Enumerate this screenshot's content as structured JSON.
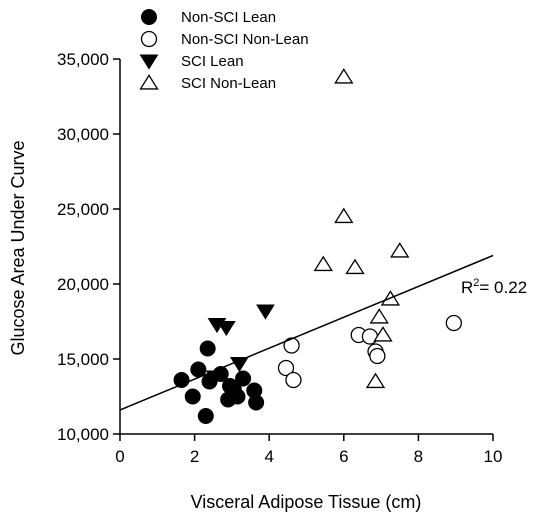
{
  "chart_data": {
    "type": "scatter",
    "xlabel": "Visceral Adipose Tissue (cm)",
    "ylabel": "Glucose Area Under Curve",
    "xlim": [
      0,
      10
    ],
    "ylim": [
      10000,
      35000
    ],
    "xticks": [
      0,
      2,
      4,
      6,
      8,
      10
    ],
    "xtick_labels": [
      "0",
      "2",
      "4",
      "6",
      "8",
      "10"
    ],
    "yticks": [
      10000,
      15000,
      20000,
      25000,
      30000,
      35000
    ],
    "ytick_labels": [
      "10,000",
      "15,000",
      "20,000",
      "25,000",
      "30,000",
      "35,000"
    ],
    "grid": false,
    "legend_position": "top-left",
    "series": [
      {
        "name": "Non-SCI Lean",
        "marker": "filled-circle",
        "color": "#000000",
        "points": [
          [
            1.65,
            13600
          ],
          [
            1.95,
            12500
          ],
          [
            2.1,
            14300
          ],
          [
            2.3,
            11200
          ],
          [
            2.35,
            15700
          ],
          [
            2.4,
            13500
          ],
          [
            2.7,
            14000
          ],
          [
            2.9,
            12300
          ],
          [
            2.95,
            13200
          ],
          [
            3.05,
            13000
          ],
          [
            3.15,
            12500
          ],
          [
            3.3,
            13700
          ],
          [
            3.6,
            12900
          ],
          [
            3.65,
            12100
          ]
        ]
      },
      {
        "name": "Non-SCI Non-Lean",
        "marker": "open-circle",
        "color": "#000000",
        "points": [
          [
            4.45,
            14400
          ],
          [
            4.6,
            15900
          ],
          [
            4.65,
            13600
          ],
          [
            6.4,
            16600
          ],
          [
            6.7,
            16500
          ],
          [
            6.85,
            15500
          ],
          [
            6.9,
            15200
          ],
          [
            8.95,
            17400
          ]
        ]
      },
      {
        "name": "SCI Lean",
        "marker": "filled-triangle-down",
        "color": "#000000",
        "points": [
          [
            2.6,
            17300
          ],
          [
            2.85,
            17100
          ],
          [
            3.2,
            14700
          ],
          [
            3.9,
            18200
          ],
          [
            2.55,
            13800
          ]
        ]
      },
      {
        "name": "SCI Non-Lean",
        "marker": "open-triangle-up",
        "color": "#000000",
        "points": [
          [
            6.0,
            33800
          ],
          [
            6.0,
            24500
          ],
          [
            5.45,
            21300
          ],
          [
            6.3,
            21100
          ],
          [
            7.5,
            22200
          ],
          [
            7.25,
            19000
          ],
          [
            6.95,
            17800
          ],
          [
            7.05,
            16600
          ],
          [
            6.85,
            13500
          ]
        ]
      }
    ],
    "regression": {
      "x": [
        0,
        10
      ],
      "y": [
        11600,
        21900
      ]
    },
    "annotation": {
      "r2_label": "R",
      "r2_sup": "2",
      "r2_value": "= 0.22"
    }
  }
}
